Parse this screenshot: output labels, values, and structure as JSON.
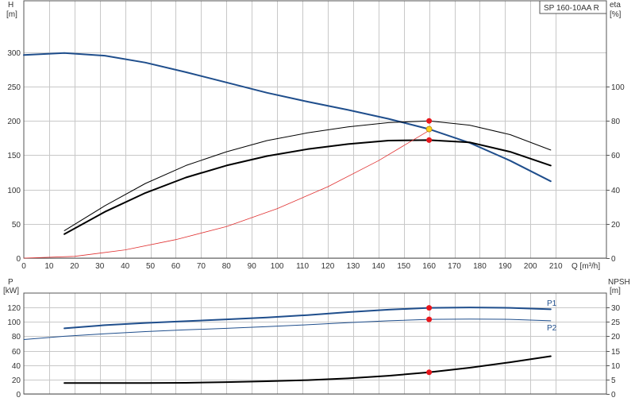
{
  "chart_data": [
    {
      "type": "line",
      "product_label": "SP 160-10AA R",
      "xlabel": "Q [m³/h]",
      "x_ticks": [
        0,
        10,
        20,
        30,
        40,
        50,
        60,
        70,
        80,
        90,
        100,
        110,
        120,
        130,
        140,
        150,
        160,
        170,
        180,
        190,
        200,
        210
      ],
      "xlim": [
        0,
        230
      ],
      "left_axis": {
        "label_top": "H",
        "label_unit": "[m]",
        "ticks": [
          0,
          50,
          100,
          150,
          200,
          250,
          300
        ],
        "ylim": [
          0,
          375
        ]
      },
      "right_axis": {
        "label_top": "eta",
        "label_unit": "[%]",
        "ticks": [
          0,
          20,
          40,
          60,
          80,
          100
        ],
        "ylim": [
          0,
          150
        ]
      },
      "grid": true,
      "series": [
        {
          "axis": "left",
          "color": "#1f4e8c",
          "width": 2,
          "x": [
            0,
            16,
            32,
            48,
            64,
            80,
            96,
            112,
            128,
            144,
            160,
            176,
            192,
            208
          ],
          "y": [
            296,
            299,
            295,
            285,
            271,
            256,
            241,
            228,
            216,
            203,
            188,
            168,
            142,
            112
          ]
        },
        {
          "axis": "right",
          "color": "#000000",
          "width": 2,
          "x": [
            16,
            32,
            48,
            64,
            80,
            96,
            112,
            128,
            144,
            160,
            176,
            192,
            208
          ],
          "y": [
            14,
            27,
            38,
            47,
            54,
            59.5,
            63.5,
            66.5,
            68.5,
            68.8,
            67.5,
            62,
            54
          ]
        },
        {
          "axis": "right",
          "color": "#000000",
          "width": 1,
          "x": [
            16,
            32,
            48,
            64,
            80,
            96,
            112,
            128,
            144,
            160,
            176,
            192,
            208
          ],
          "y": [
            16,
            30.5,
            43.5,
            54,
            62,
            68.5,
            73,
            76.5,
            79,
            80,
            77.5,
            72,
            63
          ]
        },
        {
          "axis": "left",
          "color": "#e03030",
          "width": 0.8,
          "x": [
            0,
            20,
            40,
            60,
            80,
            100,
            120,
            140,
            160
          ],
          "y": [
            0,
            2.5,
            12,
            27,
            46,
            72,
            104,
            142,
            186
          ]
        }
      ],
      "markers": [
        {
          "axis": "right",
          "x": 160,
          "y": 80,
          "color": "#e8161c"
        },
        {
          "axis": "right",
          "x": 160,
          "y": 68.8,
          "color": "#e8161c"
        },
        {
          "axis": "left",
          "x": 160,
          "y": 188,
          "color": "#ffd21a"
        }
      ]
    },
    {
      "type": "line",
      "left_axis": {
        "label_top": "P",
        "label_unit": "[kW]",
        "ticks": [
          0,
          20,
          40,
          60,
          80,
          100,
          120
        ],
        "ylim": [
          0,
          140
        ]
      },
      "right_axis": {
        "label_top": "NPSH",
        "label_unit": "[m]",
        "ticks": [
          0,
          5,
          10,
          15,
          20,
          25,
          30
        ],
        "ylim": [
          0,
          35
        ]
      },
      "grid": true,
      "series": [
        {
          "name": "P1",
          "axis": "left",
          "color": "#1f4e8c",
          "width": 2,
          "x": [
            16,
            32,
            48,
            64,
            80,
            96,
            112,
            128,
            144,
            160,
            176,
            192,
            208
          ],
          "y": [
            91,
            95.5,
            98.5,
            101,
            103.5,
            106,
            109.5,
            113.5,
            117,
            119.5,
            120,
            119.5,
            117.5
          ]
        },
        {
          "name": "P2",
          "axis": "left",
          "color": "#1f4e8c",
          "width": 1,
          "x": [
            0,
            16,
            32,
            48,
            64,
            80,
            96,
            112,
            128,
            144,
            160,
            176,
            192,
            208
          ],
          "y": [
            75.5,
            80,
            83.5,
            86.5,
            89,
            91,
            93.5,
            96,
            99,
            101.5,
            103.5,
            104,
            103.5,
            101.5
          ]
        },
        {
          "axis": "right",
          "color": "#000000",
          "width": 2,
          "x": [
            16,
            32,
            48,
            64,
            80,
            96,
            112,
            128,
            144,
            160,
            176,
            192,
            208
          ],
          "y": [
            3.8,
            3.8,
            3.8,
            3.85,
            4.1,
            4.4,
            4.8,
            5.4,
            6.3,
            7.5,
            9.1,
            11,
            13.1
          ]
        }
      ],
      "markers": [
        {
          "axis": "left",
          "x": 160,
          "y": 119.5,
          "color": "#e8161c"
        },
        {
          "axis": "left",
          "x": 160,
          "y": 103.5,
          "color": "#e8161c"
        },
        {
          "axis": "right",
          "x": 160,
          "y": 7.5,
          "color": "#e8161c"
        }
      ]
    }
  ]
}
